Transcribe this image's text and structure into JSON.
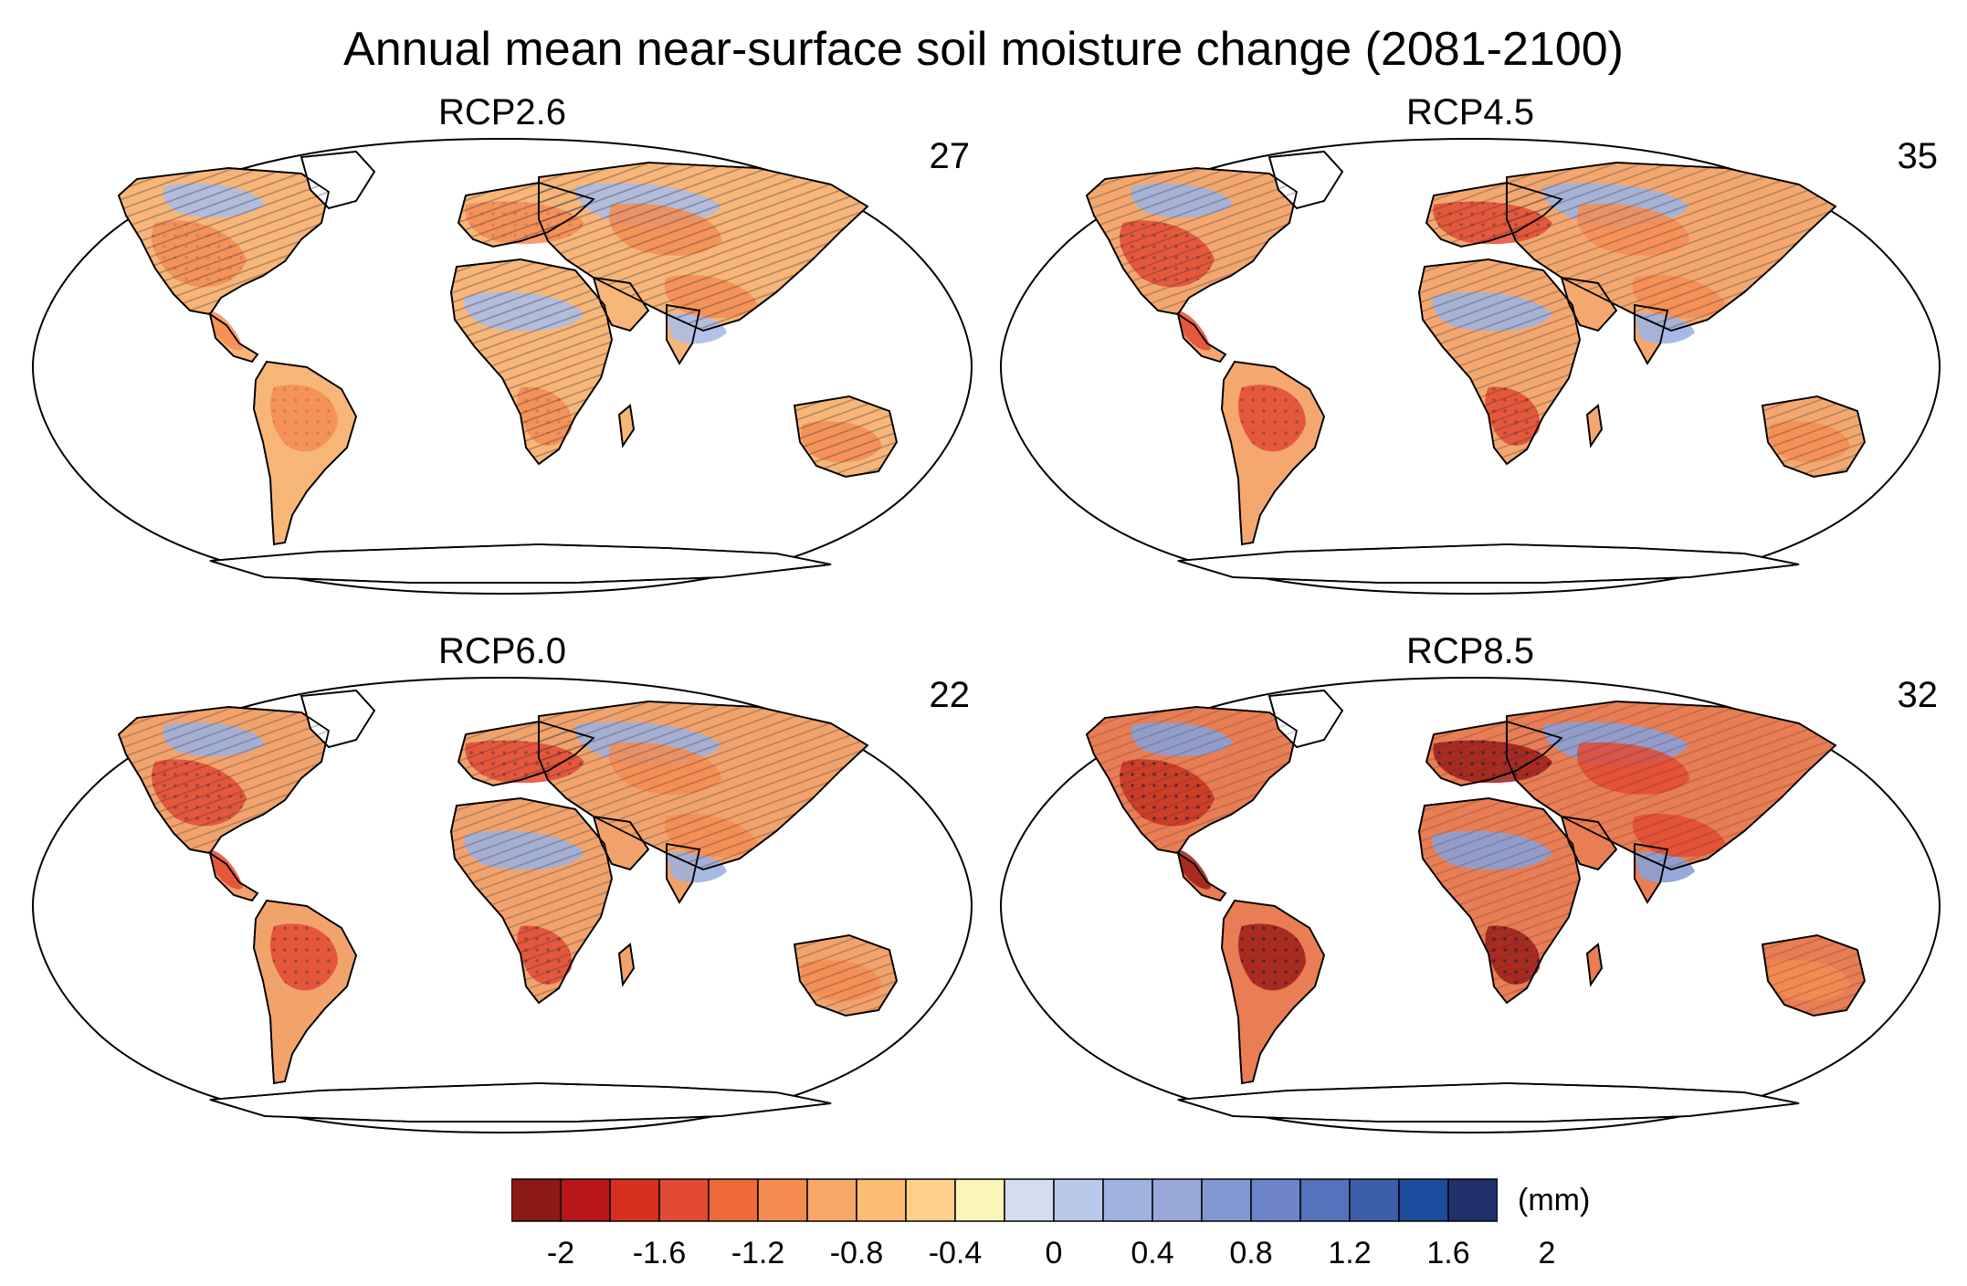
{
  "title": "Annual mean near-surface soil moisture change (2081-2100)",
  "panels": [
    {
      "name": "RCP2.6",
      "count": "27",
      "intensity": 0.3,
      "stipple": 0.15
    },
    {
      "name": "RCP4.5",
      "count": "35",
      "intensity": 0.55,
      "stipple": 0.3
    },
    {
      "name": "RCP6.0",
      "count": "22",
      "intensity": 0.6,
      "stipple": 0.35
    },
    {
      "name": "RCP8.5",
      "count": "32",
      "intensity": 1.0,
      "stipple": 0.6
    }
  ],
  "colorbar": {
    "unit": "(mm)",
    "tick_labels": [
      "-2",
      "-1.6",
      "-1.2",
      "-0.8",
      "-0.4",
      "0",
      "0.4",
      "0.8",
      "1.2",
      "1.6",
      "2"
    ],
    "colors": [
      "#8b1a17",
      "#b8151b",
      "#d7301f",
      "#e34a33",
      "#ef6a3a",
      "#f48c52",
      "#f7a869",
      "#fbbc74",
      "#fdd08b",
      "#fbf5b8",
      "#d4dcef",
      "#b8c9ea",
      "#9fb3df",
      "#98a8d8",
      "#8398d2",
      "#6d84c8",
      "#5572ba",
      "#3d5ea8",
      "#1c4c9e",
      "#22306a"
    ]
  }
}
